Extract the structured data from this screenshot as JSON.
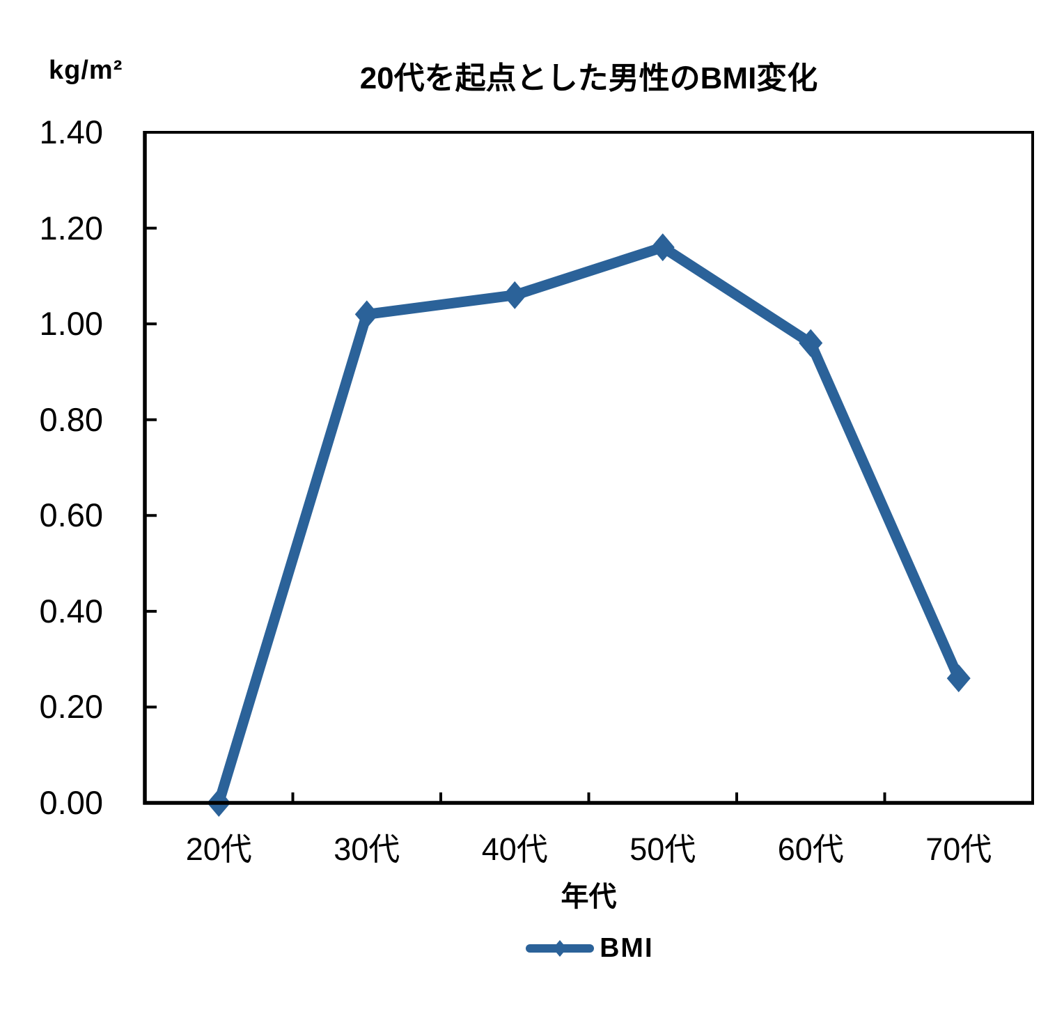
{
  "chart_data": {
    "type": "line",
    "title": "20代を起点とした男性のBMI変化",
    "unit_label": "kg/m²",
    "xlabel": "年代",
    "ylabel": "",
    "categories": [
      "20代",
      "30代",
      "40代",
      "50代",
      "60代",
      "70代"
    ],
    "series": [
      {
        "name": "BMI",
        "values": [
          0.0,
          1.02,
          1.06,
          1.16,
          0.96,
          0.26
        ]
      }
    ],
    "ylim": [
      0.0,
      1.4
    ],
    "y_tick_step": 0.2,
    "y_tick_labels": [
      "0.00",
      "0.20",
      "0.40",
      "0.60",
      "0.80",
      "1.00",
      "1.20",
      "1.40"
    ],
    "grid": false,
    "legend_position": "bottom",
    "colors": {
      "line": "#2B6299",
      "marker": "#2B6299",
      "axis": "#000000",
      "text": "#000000",
      "background": "#FFFFFF"
    }
  }
}
